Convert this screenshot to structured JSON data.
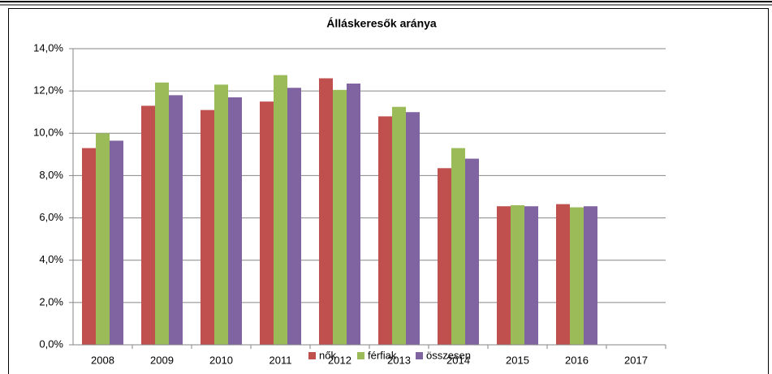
{
  "chart_data": {
    "type": "bar",
    "title": "Álláskeresők aránya",
    "categories": [
      "2008",
      "2009",
      "2010",
      "2011",
      "2012",
      "2013",
      "2014",
      "2015",
      "2016",
      "2017"
    ],
    "series": [
      {
        "name": "nők",
        "color": "#c0504d",
        "values": [
          9.3,
          11.3,
          11.1,
          11.5,
          12.6,
          10.8,
          8.35,
          6.55,
          6.65,
          null
        ]
      },
      {
        "name": "férfiak",
        "color": "#9bbb59",
        "values": [
          10.0,
          12.4,
          12.3,
          12.75,
          12.05,
          11.25,
          9.3,
          6.6,
          6.5,
          null
        ]
      },
      {
        "name": "összesen",
        "color": "#8064a2",
        "values": [
          9.65,
          11.8,
          11.7,
          12.15,
          12.35,
          11.0,
          8.8,
          6.55,
          6.55,
          null
        ]
      }
    ],
    "ylim": [
      0,
      14
    ],
    "yticks": [
      {
        "value": 0,
        "label": "0,0%"
      },
      {
        "value": 2,
        "label": "2,0%"
      },
      {
        "value": 4,
        "label": "4,0%"
      },
      {
        "value": 6,
        "label": "6,0%"
      },
      {
        "value": 8,
        "label": "8,0%"
      },
      {
        "value": 10,
        "label": "10,0%"
      },
      {
        "value": 12,
        "label": "12,0%"
      },
      {
        "value": 14,
        "label": "14,0%"
      }
    ],
    "grid": true,
    "legend": "bottom"
  }
}
